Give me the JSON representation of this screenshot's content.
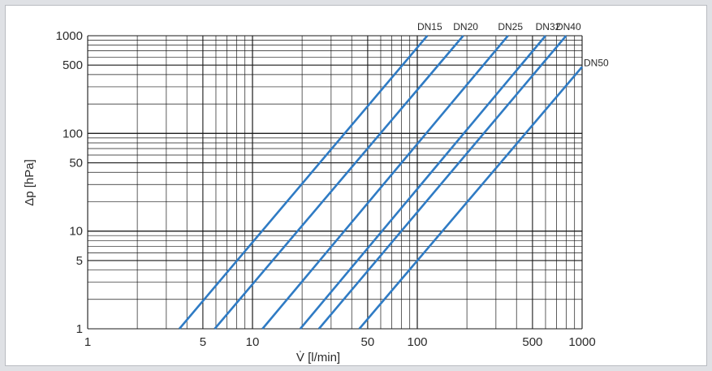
{
  "chart_data": {
    "type": "line",
    "xscale": "log",
    "yscale": "log",
    "xlabel": "V̇ [l/min]",
    "ylabel": "Δp [hPa]",
    "xlim": [
      1,
      1000
    ],
    "ylim": [
      1,
      1000
    ],
    "x_ticks": [
      1,
      5,
      10,
      50,
      100,
      500,
      1000
    ],
    "y_ticks": [
      1,
      5,
      10,
      50,
      100,
      500,
      1000
    ],
    "grid": true,
    "line_color": "#2f7bc4",
    "series": [
      {
        "name": "DN15",
        "x": [
          3.6,
          115
        ],
        "y": [
          1,
          1000
        ]
      },
      {
        "name": "DN20",
        "x": [
          5.9,
          190
        ],
        "y": [
          1,
          1000
        ]
      },
      {
        "name": "DN25",
        "x": [
          11.5,
          355
        ],
        "y": [
          1,
          1000
        ]
      },
      {
        "name": "DN32",
        "x": [
          19.5,
          600
        ],
        "y": [
          1,
          1000
        ]
      },
      {
        "name": "DN40",
        "x": [
          25.3,
          800
        ],
        "y": [
          1,
          1000
        ]
      },
      {
        "name": "DN50",
        "x": [
          44.5,
          1000
        ],
        "y": [
          1,
          480
        ]
      }
    ]
  }
}
